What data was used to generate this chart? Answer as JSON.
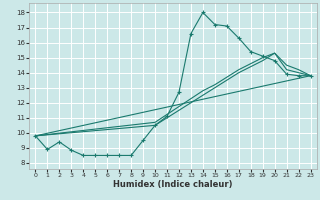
{
  "xlabel": "Humidex (Indice chaleur)",
  "bg_color": "#cce8e8",
  "line_color": "#1a7a6e",
  "grid_color": "#ffffff",
  "xlim": [
    -0.5,
    23.5
  ],
  "ylim": [
    7.6,
    18.6
  ],
  "xticks": [
    0,
    1,
    2,
    3,
    4,
    5,
    6,
    7,
    8,
    9,
    10,
    11,
    12,
    13,
    14,
    15,
    16,
    17,
    18,
    19,
    20,
    21,
    22,
    23
  ],
  "yticks": [
    8,
    9,
    10,
    11,
    12,
    13,
    14,
    15,
    16,
    17,
    18
  ],
  "line_main": {
    "x": [
      0,
      1,
      2,
      3,
      4,
      5,
      6,
      7,
      8,
      9,
      10,
      11,
      12,
      13,
      14,
      15,
      16,
      17,
      18,
      19,
      20,
      21,
      22,
      23
    ],
    "y": [
      9.8,
      8.9,
      9.4,
      8.85,
      8.5,
      8.5,
      8.5,
      8.5,
      8.5,
      9.5,
      10.5,
      11.1,
      12.7,
      16.6,
      18.0,
      17.2,
      17.1,
      16.3,
      15.4,
      15.1,
      14.8,
      13.9,
      13.8,
      13.8
    ]
  },
  "line_straight1": {
    "x": [
      0,
      23
    ],
    "y": [
      9.8,
      13.8
    ]
  },
  "line_straight2": {
    "x": [
      0,
      10,
      14,
      15,
      16,
      17,
      18,
      19,
      20,
      21,
      22,
      23
    ],
    "y": [
      9.8,
      10.5,
      12.5,
      13.0,
      13.5,
      14.0,
      14.4,
      14.8,
      15.3,
      14.2,
      14.0,
      13.8
    ]
  },
  "line_straight3": {
    "x": [
      0,
      10,
      14,
      15,
      16,
      17,
      18,
      19,
      20,
      21,
      22,
      23
    ],
    "y": [
      9.8,
      10.7,
      12.8,
      13.2,
      13.7,
      14.2,
      14.6,
      15.0,
      15.3,
      14.5,
      14.2,
      13.8
    ]
  }
}
